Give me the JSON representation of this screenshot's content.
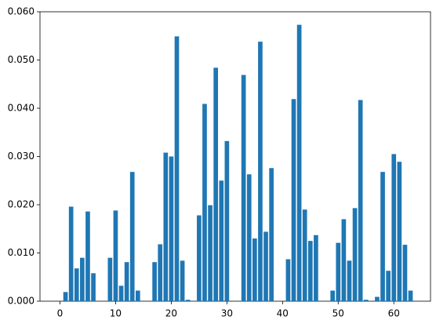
{
  "chart_data": {
    "type": "bar",
    "color": "#1f77b4",
    "x": [
      0,
      1,
      2,
      3,
      4,
      5,
      6,
      7,
      8,
      9,
      10,
      11,
      12,
      13,
      14,
      15,
      16,
      17,
      18,
      19,
      20,
      21,
      22,
      23,
      24,
      25,
      26,
      27,
      28,
      29,
      30,
      31,
      32,
      33,
      34,
      35,
      36,
      37,
      38,
      39,
      40,
      41,
      42,
      43,
      44,
      45,
      46,
      47,
      48,
      49,
      50,
      51,
      52,
      53,
      54,
      55,
      56,
      57,
      58,
      59,
      60,
      61,
      62,
      63
    ],
    "values": [
      0,
      0.0019,
      0.0196,
      0.0068,
      0.009,
      0.0186,
      0.0058,
      0,
      0,
      0.009,
      0.0188,
      0.0032,
      0.0081,
      0.0268,
      0.0022,
      0,
      0,
      0.0081,
      0.0118,
      0.0308,
      0.03,
      0.0549,
      0.0084,
      0.0003,
      0,
      0.0178,
      0.0409,
      0.0199,
      0.0484,
      0.025,
      0.0332,
      0,
      0,
      0.0469,
      0.0263,
      0.013,
      0.0538,
      0.0144,
      0.0276,
      0,
      0,
      0.0087,
      0.0419,
      0.0573,
      0.019,
      0.0125,
      0.0137,
      0,
      0,
      0.0022,
      0.0121,
      0.017,
      0.0084,
      0.0193,
      0.0417,
      0.0003,
      0,
      0.0009,
      0.0268,
      0.0063,
      0.0305,
      0.0289,
      0.0117,
      0.0022
    ],
    "xlim": [
      -3.59,
      66.59
    ],
    "xticks": [
      0,
      10,
      20,
      30,
      40,
      50,
      60
    ],
    "ylim": [
      0,
      0.06
    ],
    "yticks": [
      {
        "value": 0,
        "label": "0.000"
      },
      {
        "value": 0.01,
        "label": "0.010"
      },
      {
        "value": 0.02,
        "label": "0.020"
      },
      {
        "value": 0.03,
        "label": "0.030"
      },
      {
        "value": 0.04,
        "label": "0.040"
      },
      {
        "value": 0.05,
        "label": "0.050"
      },
      {
        "value": 0.06,
        "label": "0.060"
      }
    ],
    "grid": false
  }
}
